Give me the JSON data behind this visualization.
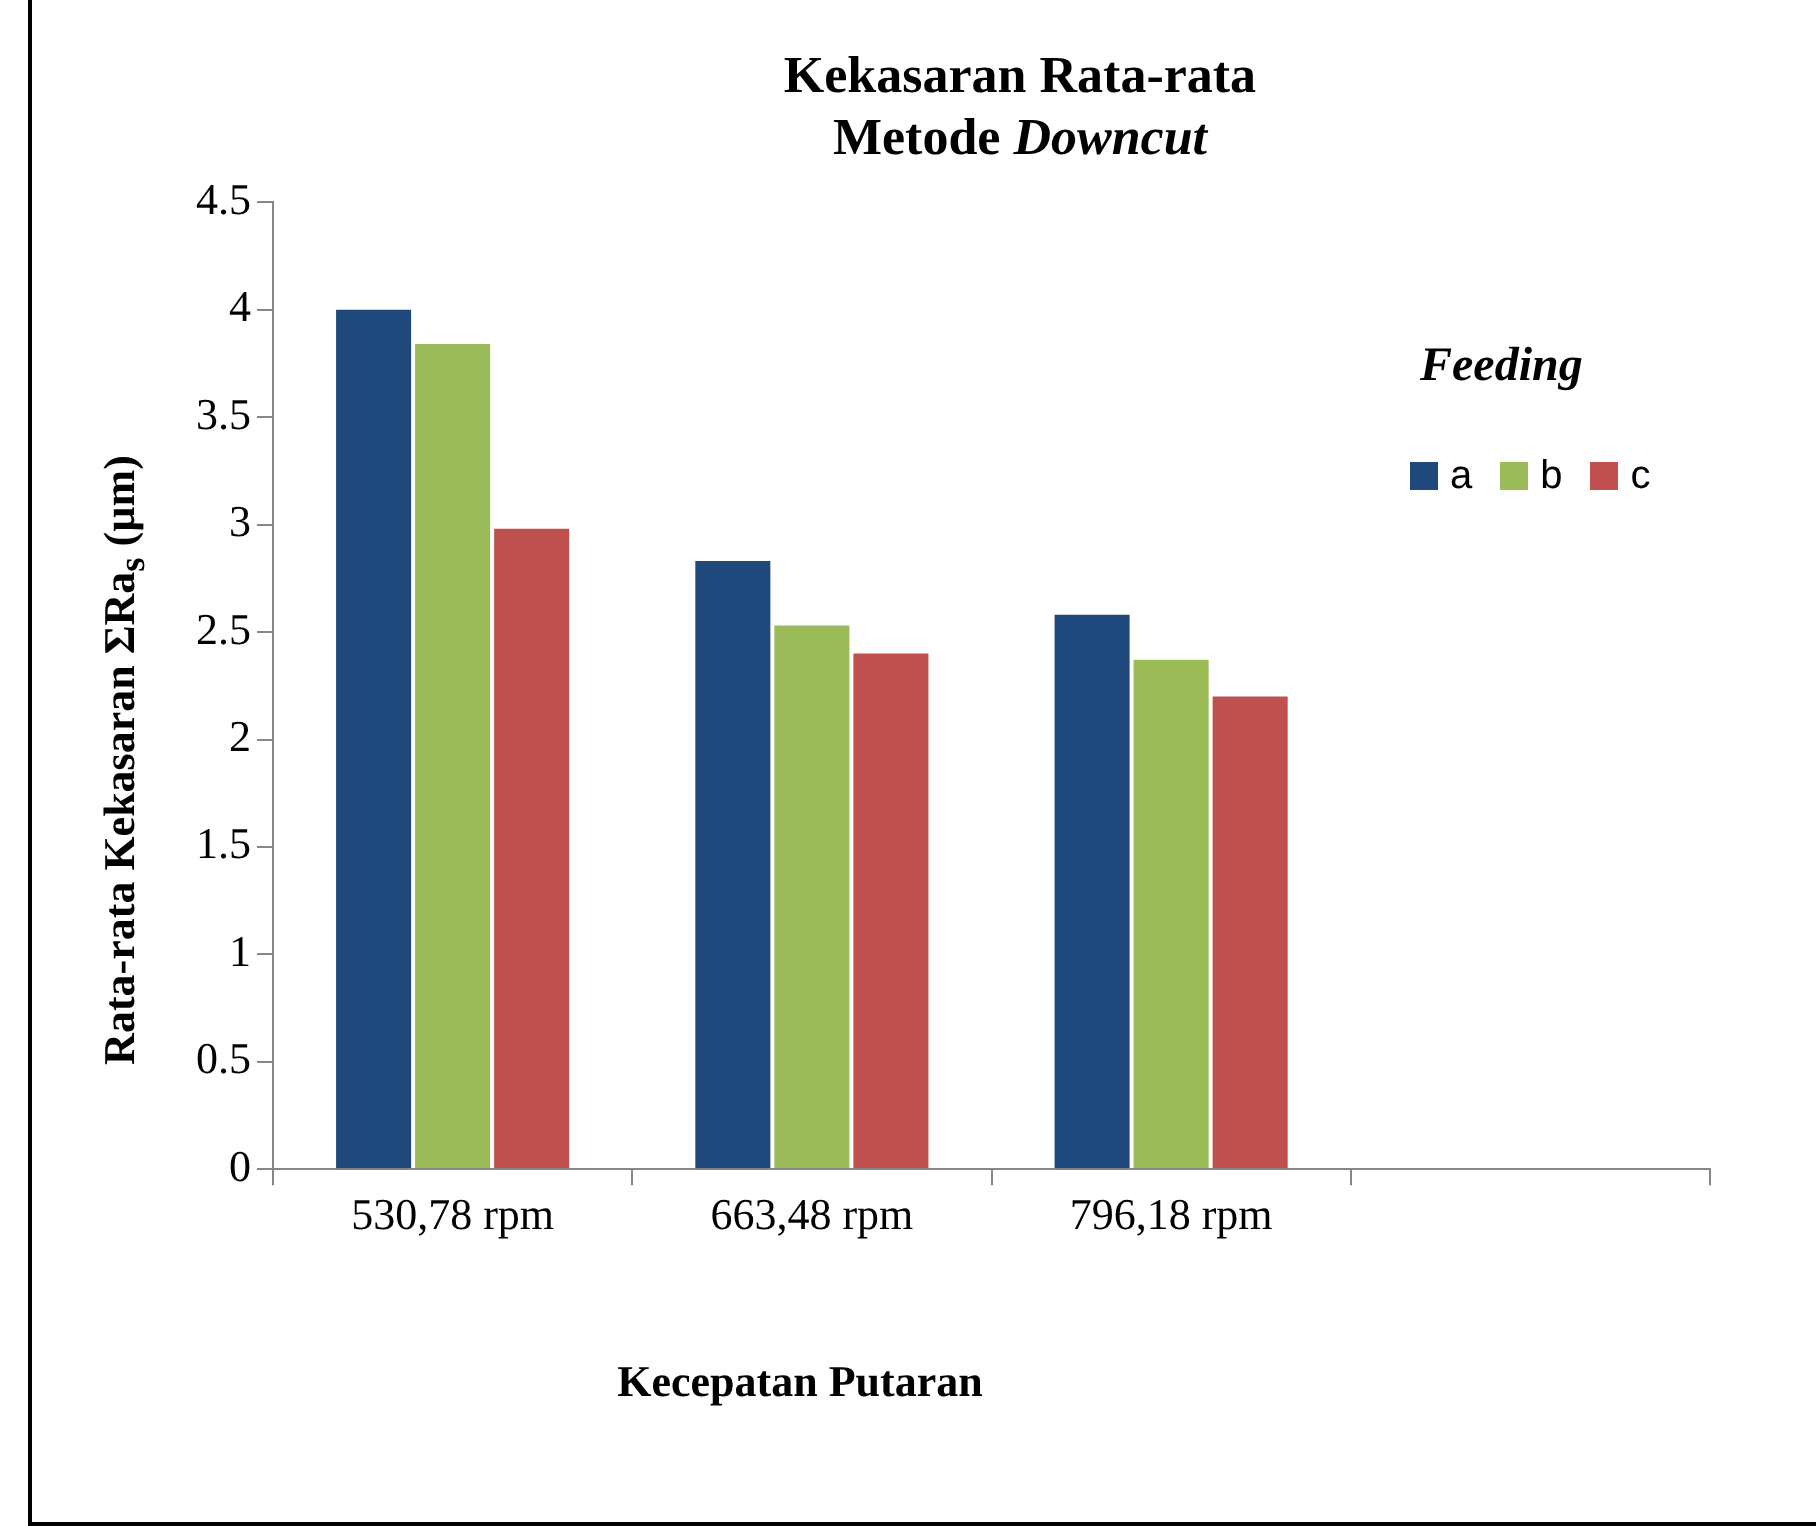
{
  "chart_data": {
    "type": "bar",
    "title": "Kekasaran Rata-rata\nMetode Downcut",
    "xlabel": "Kecepatan Putaran",
    "ylabel": "Rata-rata Kekasaran ΣRa$_{s}$ (µm)",
    "legend_title": "Feeding",
    "categories": [
      "530,78 rpm",
      "663,48 rpm",
      "796,18 rpm",
      null
    ],
    "series": [
      {
        "name": "a",
        "color": "#1f497d",
        "values": [
          4.01,
          2.84,
          2.59,
          null
        ]
      },
      {
        "name": "b",
        "color": "#9bbb59",
        "values": [
          3.85,
          2.54,
          2.38,
          null
        ]
      },
      {
        "name": "c",
        "color": "#c0504d",
        "values": [
          2.99,
          2.41,
          2.21,
          null
        ]
      }
    ],
    "ylim": [
      0,
      4.5
    ],
    "yticks": [
      0,
      0.5,
      1,
      1.5,
      2,
      2.5,
      3,
      3.5,
      4,
      4.5
    ],
    "grid": false,
    "legend": "top right"
  }
}
